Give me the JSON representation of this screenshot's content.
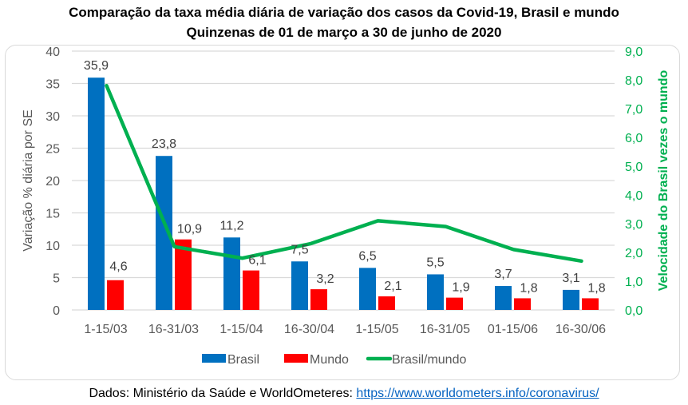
{
  "chart_data": {
    "type": "bar+line",
    "title": "Comparação da taxa média diária de variação dos casos da Covid-19, Brasil e mundo",
    "subtitle": "Quinzenas de 01 de março a 30 de junho de 2020",
    "categories": [
      "1-15/03",
      "16-31/03",
      "1-15/04",
      "16-30/04",
      "1-15/05",
      "16-31/05",
      "01-15/06",
      "16-30/06"
    ],
    "series": [
      {
        "name": "Brasil",
        "type": "bar",
        "axis": "left",
        "color": "#0070c0",
        "values": [
          35.9,
          23.8,
          11.2,
          7.5,
          6.5,
          5.5,
          3.7,
          3.1
        ],
        "labels": [
          "35,9",
          "23,8",
          "11,2",
          "7,5",
          "6,5",
          "5,5",
          "3,7",
          "3,1"
        ]
      },
      {
        "name": "Mundo",
        "type": "bar",
        "axis": "left",
        "color": "#ff0000",
        "values": [
          4.6,
          10.9,
          6.1,
          3.2,
          2.1,
          1.9,
          1.8,
          1.8
        ],
        "labels": [
          "4,6",
          "10,9",
          "6,1",
          "3,2",
          "2,1",
          "1,9",
          "1,8",
          "1,8"
        ]
      },
      {
        "name": "Brasil/mundo",
        "type": "line",
        "axis": "right",
        "color": "#00b050",
        "values": [
          7.8,
          2.2,
          1.8,
          2.3,
          3.1,
          2.9,
          2.1,
          1.7
        ]
      }
    ],
    "ylabel": "Variação % diária por SE",
    "y2label": "Velocidade do Brasil vezes o mundo",
    "ylim": [
      0,
      40
    ],
    "y2lim": [
      0,
      9
    ],
    "yticks": [
      "0",
      "5",
      "10",
      "15",
      "20",
      "25",
      "30",
      "35",
      "40"
    ],
    "y2ticks": [
      "0,0",
      "1,0",
      "2,0",
      "3,0",
      "4,0",
      "5,0",
      "6,0",
      "7,0",
      "8,0",
      "9,0"
    ],
    "grid": true,
    "legend": "bottom"
  },
  "source": {
    "prefix": "Dados: Ministério da Saúde e WorldOmeteres: ",
    "link": "https://www.worldometers.info/coronavirus/"
  }
}
